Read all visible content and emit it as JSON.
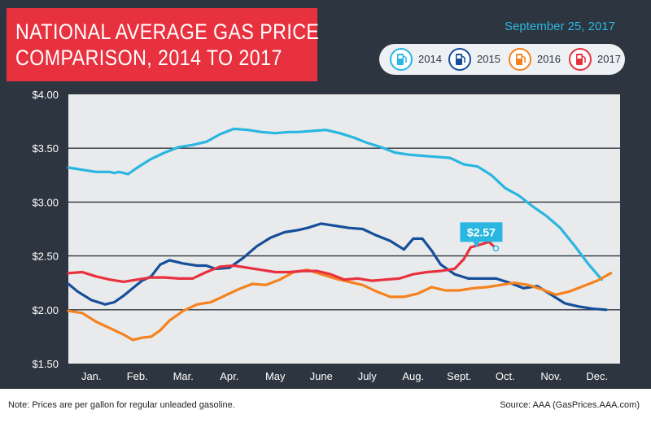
{
  "title": {
    "line1": "NATIONAL AVERAGE GAS PRICE",
    "line2": "COMPARISON, 2014 TO 2017"
  },
  "date": "September 25, 2017",
  "footer": {
    "note": "Note: Prices are per gallon for regular unleaded gasoline.",
    "source": "Source: AAA (GasPrices.AAA.com)"
  },
  "colors": {
    "2014": "#29b6e0",
    "2015": "#154e9a",
    "2016": "#f5821f",
    "2017": "#e8313f",
    "background": "#2d3540",
    "plot": "#e9eaeb"
  },
  "icons": [
    "gas-pump-icon"
  ],
  "chart_data": {
    "type": "line",
    "title": "NATIONAL AVERAGE GAS PRICE COMPARISON, 2014 TO 2017",
    "categories": [
      "Jan.",
      "Feb.",
      "Mar.",
      "Apr.",
      "May",
      "June",
      "July",
      "Aug.",
      "Sept.",
      "Oct.",
      "Nov.",
      "Dec."
    ],
    "y_ticks": [
      "$4.00",
      "$3.50",
      "$3.00",
      "$2.50",
      "$2.00",
      "$1.50"
    ],
    "ylim": [
      1.5,
      4.0
    ],
    "xlim": [
      0,
      12
    ],
    "grid": true,
    "legend": "top-right",
    "series": [
      {
        "name": "2014",
        "points": [
          [
            0,
            3.32
          ],
          [
            0.3,
            3.3
          ],
          [
            0.6,
            3.28
          ],
          [
            0.9,
            3.28
          ],
          [
            1.0,
            3.27
          ],
          [
            1.1,
            3.28
          ],
          [
            1.3,
            3.26
          ],
          [
            1.5,
            3.32
          ],
          [
            1.8,
            3.4
          ],
          [
            2.1,
            3.46
          ],
          [
            2.4,
            3.51
          ],
          [
            2.7,
            3.53
          ],
          [
            3.0,
            3.56
          ],
          [
            3.3,
            3.63
          ],
          [
            3.6,
            3.68
          ],
          [
            3.9,
            3.67
          ],
          [
            4.2,
            3.65
          ],
          [
            4.5,
            3.64
          ],
          [
            4.8,
            3.65
          ],
          [
            5.0,
            3.65
          ],
          [
            5.3,
            3.66
          ],
          [
            5.6,
            3.67
          ],
          [
            5.9,
            3.64
          ],
          [
            6.2,
            3.6
          ],
          [
            6.5,
            3.55
          ],
          [
            6.8,
            3.51
          ],
          [
            7.1,
            3.46
          ],
          [
            7.4,
            3.44
          ],
          [
            7.7,
            3.43
          ],
          [
            8.0,
            3.42
          ],
          [
            8.3,
            3.41
          ],
          [
            8.6,
            3.35
          ],
          [
            8.9,
            3.33
          ],
          [
            9.2,
            3.25
          ],
          [
            9.5,
            3.13
          ],
          [
            9.8,
            3.06
          ],
          [
            10.1,
            2.96
          ],
          [
            10.4,
            2.87
          ],
          [
            10.7,
            2.76
          ],
          [
            11.0,
            2.6
          ],
          [
            11.3,
            2.43
          ],
          [
            11.6,
            2.28
          ]
        ]
      },
      {
        "name": "2015",
        "points": [
          [
            0,
            2.24
          ],
          [
            0.2,
            2.17
          ],
          [
            0.5,
            2.09
          ],
          [
            0.8,
            2.05
          ],
          [
            1.0,
            2.07
          ],
          [
            1.2,
            2.13
          ],
          [
            1.4,
            2.2
          ],
          [
            1.6,
            2.27
          ],
          [
            1.8,
            2.31
          ],
          [
            2.0,
            2.42
          ],
          [
            2.2,
            2.46
          ],
          [
            2.5,
            2.43
          ],
          [
            2.8,
            2.41
          ],
          [
            3.0,
            2.41
          ],
          [
            3.2,
            2.38
          ],
          [
            3.5,
            2.39
          ],
          [
            3.8,
            2.48
          ],
          [
            4.1,
            2.59
          ],
          [
            4.4,
            2.67
          ],
          [
            4.7,
            2.72
          ],
          [
            5.0,
            2.74
          ],
          [
            5.2,
            2.76
          ],
          [
            5.5,
            2.8
          ],
          [
            5.8,
            2.78
          ],
          [
            6.1,
            2.76
          ],
          [
            6.4,
            2.75
          ],
          [
            6.7,
            2.69
          ],
          [
            7.0,
            2.64
          ],
          [
            7.3,
            2.56
          ],
          [
            7.5,
            2.66
          ],
          [
            7.7,
            2.66
          ],
          [
            7.9,
            2.55
          ],
          [
            8.1,
            2.42
          ],
          [
            8.4,
            2.33
          ],
          [
            8.7,
            2.29
          ],
          [
            9.0,
            2.29
          ],
          [
            9.3,
            2.29
          ],
          [
            9.6,
            2.25
          ],
          [
            9.9,
            2.2
          ],
          [
            10.2,
            2.22
          ],
          [
            10.5,
            2.14
          ],
          [
            10.8,
            2.06
          ],
          [
            11.1,
            2.03
          ],
          [
            11.4,
            2.01
          ],
          [
            11.7,
            2.0
          ]
        ]
      },
      {
        "name": "2016",
        "points": [
          [
            0,
            1.99
          ],
          [
            0.3,
            1.97
          ],
          [
            0.6,
            1.89
          ],
          [
            0.9,
            1.83
          ],
          [
            1.2,
            1.77
          ],
          [
            1.4,
            1.72
          ],
          [
            1.6,
            1.74
          ],
          [
            1.8,
            1.75
          ],
          [
            2.0,
            1.81
          ],
          [
            2.2,
            1.9
          ],
          [
            2.5,
            1.99
          ],
          [
            2.8,
            2.05
          ],
          [
            3.1,
            2.07
          ],
          [
            3.4,
            2.13
          ],
          [
            3.7,
            2.19
          ],
          [
            4.0,
            2.24
          ],
          [
            4.3,
            2.23
          ],
          [
            4.6,
            2.28
          ],
          [
            4.9,
            2.35
          ],
          [
            5.2,
            2.37
          ],
          [
            5.5,
            2.33
          ],
          [
            5.8,
            2.29
          ],
          [
            6.1,
            2.26
          ],
          [
            6.4,
            2.23
          ],
          [
            6.7,
            2.17
          ],
          [
            7.0,
            2.12
          ],
          [
            7.3,
            2.12
          ],
          [
            7.6,
            2.15
          ],
          [
            7.9,
            2.21
          ],
          [
            8.2,
            2.18
          ],
          [
            8.5,
            2.18
          ],
          [
            8.8,
            2.2
          ],
          [
            9.1,
            2.21
          ],
          [
            9.4,
            2.23
          ],
          [
            9.7,
            2.25
          ],
          [
            10.0,
            2.23
          ],
          [
            10.3,
            2.19
          ],
          [
            10.6,
            2.14
          ],
          [
            10.9,
            2.17
          ],
          [
            11.2,
            2.22
          ],
          [
            11.5,
            2.27
          ],
          [
            11.8,
            2.34
          ]
        ]
      },
      {
        "name": "2017",
        "points": [
          [
            0,
            2.34
          ],
          [
            0.3,
            2.35
          ],
          [
            0.6,
            2.31
          ],
          [
            0.9,
            2.28
          ],
          [
            1.2,
            2.26
          ],
          [
            1.5,
            2.28
          ],
          [
            1.8,
            2.3
          ],
          [
            2.1,
            2.3
          ],
          [
            2.4,
            2.29
          ],
          [
            2.7,
            2.29
          ],
          [
            3.0,
            2.35
          ],
          [
            3.3,
            2.4
          ],
          [
            3.6,
            2.41
          ],
          [
            3.9,
            2.39
          ],
          [
            4.2,
            2.37
          ],
          [
            4.5,
            2.35
          ],
          [
            4.8,
            2.35
          ],
          [
            5.1,
            2.36
          ],
          [
            5.4,
            2.36
          ],
          [
            5.7,
            2.33
          ],
          [
            6.0,
            2.28
          ],
          [
            6.3,
            2.29
          ],
          [
            6.6,
            2.27
          ],
          [
            6.9,
            2.28
          ],
          [
            7.2,
            2.29
          ],
          [
            7.5,
            2.33
          ],
          [
            7.8,
            2.35
          ],
          [
            8.1,
            2.36
          ],
          [
            8.4,
            2.38
          ],
          [
            8.6,
            2.47
          ],
          [
            8.75,
            2.58
          ],
          [
            9.0,
            2.61
          ],
          [
            9.15,
            2.63
          ],
          [
            9.3,
            2.57
          ]
        ]
      }
    ],
    "annotation": {
      "label": "$2.57",
      "x": 9.3,
      "y": 2.57
    }
  }
}
